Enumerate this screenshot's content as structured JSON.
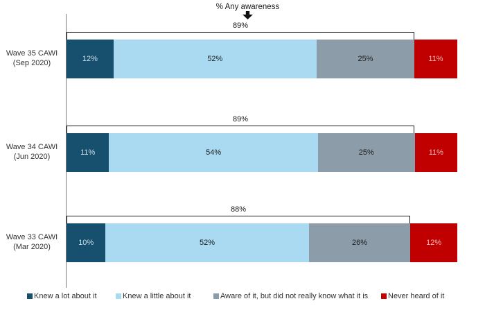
{
  "chart_data": {
    "type": "bar",
    "variant": "horizontal_stacked",
    "title": "% Any awareness",
    "value_suffix": "%",
    "xlim": [
      0,
      100
    ],
    "grid": false,
    "legend_position": "bottom",
    "categories": [
      {
        "line1": "Wave 35 CAWI",
        "line2": "(Sep 2020)"
      },
      {
        "line1": "Wave 34 CAWI",
        "line2": "(Jun 2020)"
      },
      {
        "line1": "Wave 33 CAWI",
        "line2": "(Mar 2020)"
      }
    ],
    "series": [
      {
        "name": "Knew a lot about it",
        "color": "#17506e",
        "values": [
          12,
          11,
          10
        ]
      },
      {
        "name": "Knew a little about it",
        "color": "#a9daf2",
        "values": [
          52,
          54,
          52
        ]
      },
      {
        "name": "Aware of it, but did not really know what it is",
        "color": "#8c9da9",
        "values": [
          25,
          25,
          26
        ]
      },
      {
        "name": "Never heard of it",
        "color": "#c00000",
        "values": [
          11,
          11,
          12
        ]
      }
    ],
    "annotations": {
      "any_awareness_totals": [
        89,
        89,
        88
      ]
    }
  }
}
